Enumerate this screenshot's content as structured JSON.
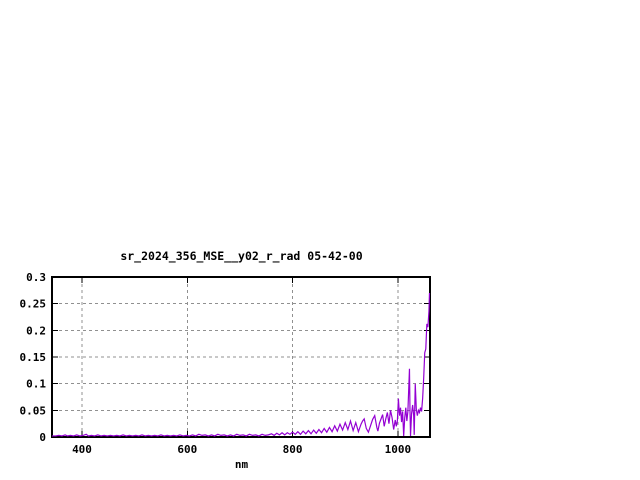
{
  "page": {
    "background": "#ffffff"
  },
  "chart_data": {
    "type": "line",
    "title": "sr_2024_356_MSE__y02_r_rad 05-42-00",
    "xlabel": "nm",
    "ylabel": "",
    "xlim": [
      343,
      1061
    ],
    "ylim": [
      0,
      0.3
    ],
    "xticks": {
      "values": [
        400,
        600,
        800,
        1000
      ],
      "labels": [
        "400",
        "600",
        "800",
        "1000"
      ]
    },
    "yticks": {
      "values": [
        0,
        0.05,
        0.1,
        0.15,
        0.2,
        0.25,
        0.3
      ],
      "labels": [
        "0",
        "0.05",
        "0.1",
        "0.15",
        "0.2",
        "0.25",
        "0.3"
      ]
    },
    "grid": true,
    "legend": "none",
    "line_color": "#9400d3",
    "grid_color": "#909090",
    "border_color": "#000000",
    "series": [
      {
        "name": "",
        "points": [
          [
            343,
            0.002
          ],
          [
            350,
            0.002
          ],
          [
            356,
            0.003
          ],
          [
            362,
            0.002
          ],
          [
            368,
            0.004
          ],
          [
            372,
            0.002
          ],
          [
            378,
            0.003
          ],
          [
            384,
            0.002
          ],
          [
            390,
            0.004
          ],
          [
            396,
            0.002
          ],
          [
            402,
            0.003
          ],
          [
            408,
            0.005
          ],
          [
            412,
            0.002
          ],
          [
            418,
            0.003
          ],
          [
            424,
            0.002
          ],
          [
            430,
            0.004
          ],
          [
            436,
            0.002
          ],
          [
            442,
            0.003
          ],
          [
            448,
            0.002
          ],
          [
            454,
            0.003
          ],
          [
            460,
            0.002
          ],
          [
            466,
            0.003
          ],
          [
            472,
            0.002
          ],
          [
            478,
            0.004
          ],
          [
            484,
            0.002
          ],
          [
            490,
            0.003
          ],
          [
            496,
            0.002
          ],
          [
            502,
            0.003
          ],
          [
            508,
            0.002
          ],
          [
            514,
            0.004
          ],
          [
            520,
            0.002
          ],
          [
            526,
            0.003
          ],
          [
            532,
            0.002
          ],
          [
            538,
            0.003
          ],
          [
            544,
            0.002
          ],
          [
            550,
            0.004
          ],
          [
            556,
            0.002
          ],
          [
            562,
            0.003
          ],
          [
            568,
            0.002
          ],
          [
            574,
            0.003
          ],
          [
            580,
            0.002
          ],
          [
            586,
            0.004
          ],
          [
            592,
            0.002
          ],
          [
            598,
            0.003
          ],
          [
            604,
            0.002
          ],
          [
            610,
            0.004
          ],
          [
            616,
            0.002
          ],
          [
            622,
            0.005
          ],
          [
            628,
            0.003
          ],
          [
            634,
            0.004
          ],
          [
            640,
            0.002
          ],
          [
            646,
            0.004
          ],
          [
            652,
            0.002
          ],
          [
            658,
            0.005
          ],
          [
            664,
            0.003
          ],
          [
            670,
            0.004
          ],
          [
            676,
            0.002
          ],
          [
            682,
            0.004
          ],
          [
            688,
            0.002
          ],
          [
            694,
            0.005
          ],
          [
            700,
            0.003
          ],
          [
            706,
            0.004
          ],
          [
            712,
            0.002
          ],
          [
            718,
            0.005
          ],
          [
            724,
            0.003
          ],
          [
            730,
            0.004
          ],
          [
            736,
            0.002
          ],
          [
            742,
            0.005
          ],
          [
            748,
            0.003
          ],
          [
            754,
            0.004
          ],
          [
            760,
            0.006
          ],
          [
            765,
            0.003
          ],
          [
            770,
            0.007
          ],
          [
            775,
            0.004
          ],
          [
            780,
            0.008
          ],
          [
            785,
            0.004
          ],
          [
            790,
            0.008
          ],
          [
            795,
            0.005
          ],
          [
            800,
            0.009
          ],
          [
            805,
            0.005
          ],
          [
            810,
            0.01
          ],
          [
            815,
            0.005
          ],
          [
            820,
            0.011
          ],
          [
            825,
            0.006
          ],
          [
            830,
            0.012
          ],
          [
            835,
            0.006
          ],
          [
            840,
            0.013
          ],
          [
            845,
            0.007
          ],
          [
            850,
            0.014
          ],
          [
            855,
            0.008
          ],
          [
            860,
            0.016
          ],
          [
            865,
            0.009
          ],
          [
            870,
            0.018
          ],
          [
            875,
            0.01
          ],
          [
            880,
            0.021
          ],
          [
            885,
            0.011
          ],
          [
            890,
            0.024
          ],
          [
            895,
            0.013
          ],
          [
            900,
            0.027
          ],
          [
            905,
            0.014
          ],
          [
            910,
            0.03
          ],
          [
            915,
            0.012
          ],
          [
            920,
            0.027
          ],
          [
            925,
            0.01
          ],
          [
            930,
            0.024
          ],
          [
            933,
            0.03
          ],
          [
            936,
            0.034
          ],
          [
            940,
            0.016
          ],
          [
            944,
            0.009
          ],
          [
            948,
            0.021
          ],
          [
            952,
            0.033
          ],
          [
            956,
            0.04
          ],
          [
            960,
            0.018
          ],
          [
            962,
            0.011
          ],
          [
            965,
            0.026
          ],
          [
            968,
            0.034
          ],
          [
            971,
            0.042
          ],
          [
            974,
            0.02
          ],
          [
            977,
            0.034
          ],
          [
            980,
            0.046
          ],
          [
            983,
            0.025
          ],
          [
            986,
            0.05
          ],
          [
            989,
            0.036
          ],
          [
            992,
            0.014
          ],
          [
            995,
            0.032
          ],
          [
            997,
            0.02
          ],
          [
            999,
            0.03
          ],
          [
            1001,
            0.072
          ],
          [
            1003,
            0.04
          ],
          [
            1005,
            0.055
          ],
          [
            1007,
            0.028
          ],
          [
            1009,
            0.048
          ],
          [
            1011,
            0.002
          ],
          [
            1013,
            0.036
          ],
          [
            1015,
            0.055
          ],
          [
            1017,
            0.03
          ],
          [
            1019,
            0.048
          ],
          [
            1022,
            0.128
          ],
          [
            1023,
            0.05
          ],
          [
            1024,
            0.002
          ],
          [
            1026,
            0.044
          ],
          [
            1028,
            0.06
          ],
          [
            1030,
            0.04
          ],
          [
            1031,
            0.004
          ],
          [
            1033,
            0.1
          ],
          [
            1035,
            0.052
          ],
          [
            1037,
            0.04
          ],
          [
            1039,
            0.05
          ],
          [
            1041,
            0.046
          ],
          [
            1043,
            0.055
          ],
          [
            1045,
            0.048
          ],
          [
            1047,
            0.072
          ],
          [
            1049,
            0.11
          ],
          [
            1051,
            0.158
          ],
          [
            1053,
            0.165
          ],
          [
            1055,
            0.212
          ],
          [
            1057,
            0.206
          ],
          [
            1059,
            0.236
          ],
          [
            1060,
            0.27
          ]
        ]
      }
    ]
  }
}
